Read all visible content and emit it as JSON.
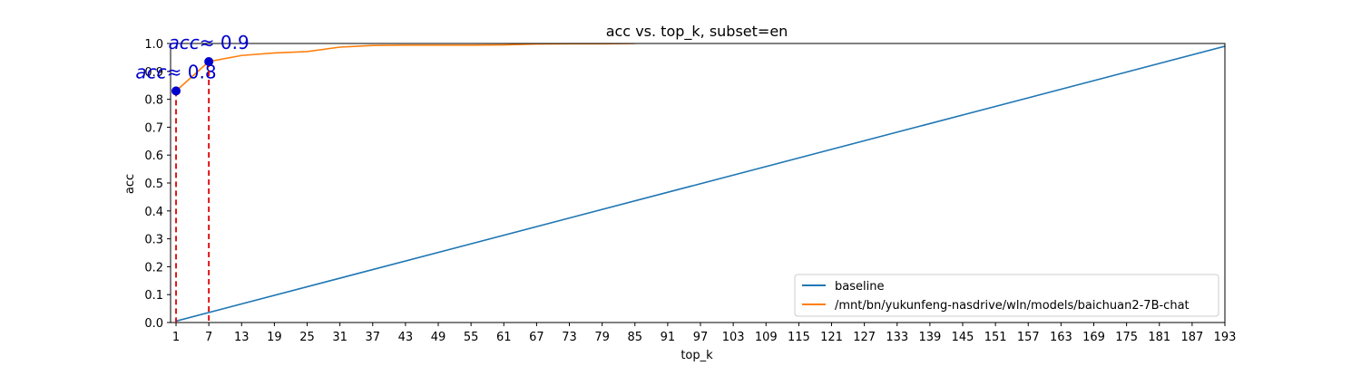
{
  "chart_data": {
    "type": "line",
    "title": "acc vs. top_k, subset=en",
    "xlabel": "top_k",
    "ylabel": "acc",
    "xlim": [
      0,
      193
    ],
    "ylim": [
      0.0,
      1.0
    ],
    "xticks": [
      1,
      7,
      13,
      19,
      25,
      31,
      37,
      43,
      49,
      55,
      61,
      67,
      73,
      79,
      85,
      91,
      97,
      103,
      109,
      115,
      121,
      127,
      133,
      139,
      145,
      151,
      157,
      163,
      169,
      175,
      181,
      187,
      193
    ],
    "yticks": [
      0.0,
      0.1,
      0.2,
      0.3,
      0.4,
      0.5,
      0.6,
      0.7,
      0.8,
      0.9,
      1.0
    ],
    "grid": false,
    "legend_position": "lower-right",
    "series": [
      {
        "name": "baseline",
        "color": "#1f77b4",
        "x": [
          1,
          193
        ],
        "y": [
          0.005,
          0.99
        ]
      },
      {
        "name": "/mnt/bn/yukunfeng-nasdrive/wln/models/baichuan2-7B-chat",
        "color": "#ff7f0e",
        "x": [
          1,
          7,
          13,
          19,
          25,
          31,
          37,
          43,
          49,
          55,
          61,
          67,
          73,
          79,
          85
        ],
        "y": [
          0.83,
          0.935,
          0.957,
          0.966,
          0.971,
          0.987,
          0.993,
          0.994,
          0.994,
          0.994,
          0.995,
          0.998,
          0.999,
          0.999,
          1.0
        ]
      }
    ],
    "markers": [
      {
        "x": 1,
        "y": 0.83,
        "label_var": "acc",
        "label_val": "≈ 0.8"
      },
      {
        "x": 7,
        "y": 0.935,
        "label_var": "acc",
        "label_val": "≈ 0.9"
      }
    ],
    "marker_color": "#0000cc",
    "guide_color": "#dd0000"
  }
}
